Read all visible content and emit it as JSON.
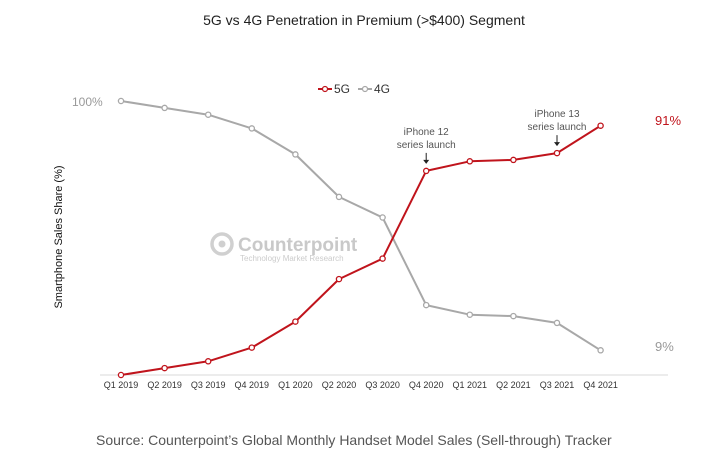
{
  "chart_data": {
    "type": "line",
    "title": "5G vs 4G Penetration in Premium (>$400) Segment",
    "ylabel": "Smartphone Sales Share (%)",
    "xlabel": "",
    "ylim": [
      0,
      100
    ],
    "categories": [
      "Q1 2019",
      "Q2 2019",
      "Q3 2019",
      "Q4 2019",
      "Q1 2020",
      "Q2 2020",
      "Q3 2020",
      "Q4 2020",
      "Q1 2021",
      "Q2 2021",
      "Q3 2021",
      "Q4 2021"
    ],
    "series": [
      {
        "name": "5G",
        "color": "#c0141c",
        "values": [
          0,
          2.5,
          5,
          10,
          19.5,
          35,
          42.5,
          74.5,
          78,
          78.5,
          81,
          91
        ]
      },
      {
        "name": "4G",
        "color": "#a8a8a8",
        "values": [
          100,
          97.5,
          95,
          90,
          80.5,
          65,
          57.5,
          25.5,
          22,
          21.5,
          19,
          9
        ]
      }
    ],
    "legend": "top-center",
    "grid": false,
    "y_top_label": "100%",
    "end_labels": {
      "5G": "91%",
      "4G": "9%"
    },
    "annotations": [
      {
        "index": 7,
        "lines": [
          "iPhone 12",
          "series launch"
        ]
      },
      {
        "index": 10,
        "lines": [
          "iPhone 13",
          "series launch"
        ]
      }
    ]
  },
  "watermark": {
    "name": "Counterpoint",
    "tagline": "Technology Market Research"
  },
  "source": "Source: Counterpoint’s Global Monthly Handset Model Sales (Sell-through) Tracker"
}
